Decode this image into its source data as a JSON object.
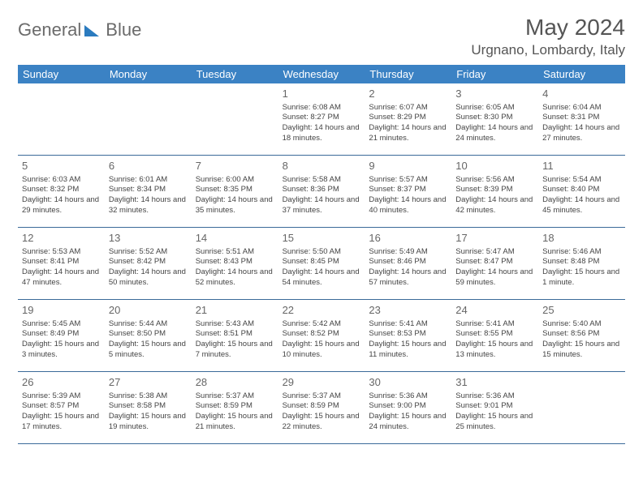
{
  "logo": {
    "part1": "General",
    "part2": "Blue"
  },
  "title": "May 2024",
  "location": "Urgnano, Lombardy, Italy",
  "colors": {
    "header_bg": "#3b82c4",
    "header_text": "#ffffff",
    "week_border": "#3b6a99",
    "text": "#444444",
    "title_text": "#555555"
  },
  "day_headers": [
    "Sunday",
    "Monday",
    "Tuesday",
    "Wednesday",
    "Thursday",
    "Friday",
    "Saturday"
  ],
  "weeks": [
    [
      null,
      null,
      null,
      {
        "n": "1",
        "sr": "6:08 AM",
        "ss": "8:27 PM",
        "dl": "14 hours and 18 minutes."
      },
      {
        "n": "2",
        "sr": "6:07 AM",
        "ss": "8:29 PM",
        "dl": "14 hours and 21 minutes."
      },
      {
        "n": "3",
        "sr": "6:05 AM",
        "ss": "8:30 PM",
        "dl": "14 hours and 24 minutes."
      },
      {
        "n": "4",
        "sr": "6:04 AM",
        "ss": "8:31 PM",
        "dl": "14 hours and 27 minutes."
      }
    ],
    [
      {
        "n": "5",
        "sr": "6:03 AM",
        "ss": "8:32 PM",
        "dl": "14 hours and 29 minutes."
      },
      {
        "n": "6",
        "sr": "6:01 AM",
        "ss": "8:34 PM",
        "dl": "14 hours and 32 minutes."
      },
      {
        "n": "7",
        "sr": "6:00 AM",
        "ss": "8:35 PM",
        "dl": "14 hours and 35 minutes."
      },
      {
        "n": "8",
        "sr": "5:58 AM",
        "ss": "8:36 PM",
        "dl": "14 hours and 37 minutes."
      },
      {
        "n": "9",
        "sr": "5:57 AM",
        "ss": "8:37 PM",
        "dl": "14 hours and 40 minutes."
      },
      {
        "n": "10",
        "sr": "5:56 AM",
        "ss": "8:39 PM",
        "dl": "14 hours and 42 minutes."
      },
      {
        "n": "11",
        "sr": "5:54 AM",
        "ss": "8:40 PM",
        "dl": "14 hours and 45 minutes."
      }
    ],
    [
      {
        "n": "12",
        "sr": "5:53 AM",
        "ss": "8:41 PM",
        "dl": "14 hours and 47 minutes."
      },
      {
        "n": "13",
        "sr": "5:52 AM",
        "ss": "8:42 PM",
        "dl": "14 hours and 50 minutes."
      },
      {
        "n": "14",
        "sr": "5:51 AM",
        "ss": "8:43 PM",
        "dl": "14 hours and 52 minutes."
      },
      {
        "n": "15",
        "sr": "5:50 AM",
        "ss": "8:45 PM",
        "dl": "14 hours and 54 minutes."
      },
      {
        "n": "16",
        "sr": "5:49 AM",
        "ss": "8:46 PM",
        "dl": "14 hours and 57 minutes."
      },
      {
        "n": "17",
        "sr": "5:47 AM",
        "ss": "8:47 PM",
        "dl": "14 hours and 59 minutes."
      },
      {
        "n": "18",
        "sr": "5:46 AM",
        "ss": "8:48 PM",
        "dl": "15 hours and 1 minute."
      }
    ],
    [
      {
        "n": "19",
        "sr": "5:45 AM",
        "ss": "8:49 PM",
        "dl": "15 hours and 3 minutes."
      },
      {
        "n": "20",
        "sr": "5:44 AM",
        "ss": "8:50 PM",
        "dl": "15 hours and 5 minutes."
      },
      {
        "n": "21",
        "sr": "5:43 AM",
        "ss": "8:51 PM",
        "dl": "15 hours and 7 minutes."
      },
      {
        "n": "22",
        "sr": "5:42 AM",
        "ss": "8:52 PM",
        "dl": "15 hours and 10 minutes."
      },
      {
        "n": "23",
        "sr": "5:41 AM",
        "ss": "8:53 PM",
        "dl": "15 hours and 11 minutes."
      },
      {
        "n": "24",
        "sr": "5:41 AM",
        "ss": "8:55 PM",
        "dl": "15 hours and 13 minutes."
      },
      {
        "n": "25",
        "sr": "5:40 AM",
        "ss": "8:56 PM",
        "dl": "15 hours and 15 minutes."
      }
    ],
    [
      {
        "n": "26",
        "sr": "5:39 AM",
        "ss": "8:57 PM",
        "dl": "15 hours and 17 minutes."
      },
      {
        "n": "27",
        "sr": "5:38 AM",
        "ss": "8:58 PM",
        "dl": "15 hours and 19 minutes."
      },
      {
        "n": "28",
        "sr": "5:37 AM",
        "ss": "8:59 PM",
        "dl": "15 hours and 21 minutes."
      },
      {
        "n": "29",
        "sr": "5:37 AM",
        "ss": "8:59 PM",
        "dl": "15 hours and 22 minutes."
      },
      {
        "n": "30",
        "sr": "5:36 AM",
        "ss": "9:00 PM",
        "dl": "15 hours and 24 minutes."
      },
      {
        "n": "31",
        "sr": "5:36 AM",
        "ss": "9:01 PM",
        "dl": "15 hours and 25 minutes."
      },
      null
    ]
  ],
  "labels": {
    "sunrise": "Sunrise:",
    "sunset": "Sunset:",
    "daylight": "Daylight:"
  }
}
